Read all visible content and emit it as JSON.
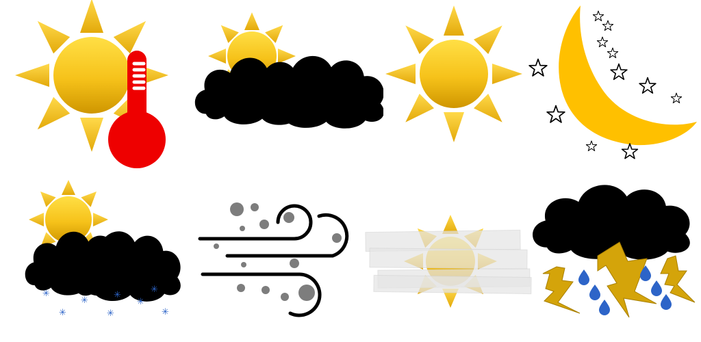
{
  "icon_set": [
    {
      "name": "hot-weather",
      "icons": [
        "sun-icon",
        "thermometer-icon"
      ]
    },
    {
      "name": "partly-cloudy",
      "icons": [
        "sun-icon",
        "cloud-icon"
      ]
    },
    {
      "name": "sunny",
      "icons": [
        "sun-icon"
      ]
    },
    {
      "name": "clear-night",
      "icons": [
        "crescent-moon-icon",
        "star-icon"
      ]
    },
    {
      "name": "snow",
      "icons": [
        "sun-icon",
        "cloud-icon",
        "snowflake-icon"
      ]
    },
    {
      "name": "windy",
      "icons": [
        "wind-icon"
      ]
    },
    {
      "name": "hazy",
      "icons": [
        "sun-icon",
        "fog-icon"
      ]
    },
    {
      "name": "thunderstorm",
      "icons": [
        "cloud-icon",
        "lightning-icon",
        "raindrop-icon"
      ]
    }
  ],
  "colors": {
    "sun_top": "#ffd93a",
    "sun_bottom": "#d49a00",
    "thermometer": "#ee0000",
    "moon": "#ffc000",
    "cloud_white": "#ffffff",
    "cloud_blue": "#4a78cc",
    "cloud_gray": "#858585",
    "wind": "#000000",
    "dust": "#7d7d7d",
    "lightning": "#d4a40a",
    "raindrop": "#2d64c8",
    "snowflake": "#2d64c8"
  }
}
